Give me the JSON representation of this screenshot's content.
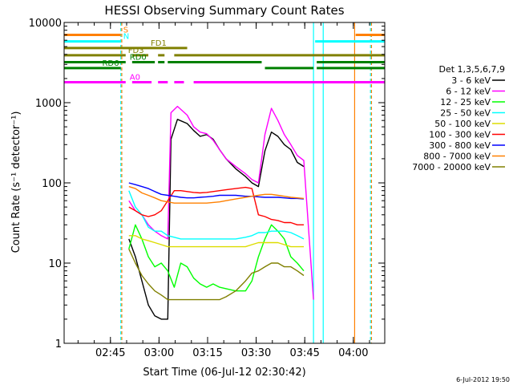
{
  "chart_data": {
    "type": "line",
    "title": "HESSI Observing Summary Count Rates",
    "xlabel": "Start Time (06-Jul-12 02:30:42)",
    "ylabel": "Count Rate (s⁻¹ detector⁻¹)",
    "ylim": [
      1,
      10000
    ],
    "yscale": "log",
    "x_unit": "minutes after 02:30:42",
    "xlim": [
      0,
      99
    ],
    "x_ticks": [
      {
        "label": "02:45",
        "value": 14.3
      },
      {
        "label": "03:00",
        "value": 29.3
      },
      {
        "label": "03:15",
        "value": 44.3
      },
      {
        "label": "03:30",
        "value": 59.3
      },
      {
        "label": "03:45",
        "value": 74.3
      },
      {
        "label": "04:00",
        "value": 89.3
      }
    ],
    "y_ticks": [
      {
        "label": "1",
        "value": 1
      },
      {
        "label": "10",
        "value": 10
      },
      {
        "label": "100",
        "value": 100
      },
      {
        "label": "1000",
        "value": 1000
      },
      {
        "label": "10000",
        "value": 10000
      }
    ],
    "legend_title": "Det 1,3,5,6,7,9",
    "legend_position": "right",
    "timestamp": "6-Jul-2012 19:50",
    "series": [
      {
        "name": "3 - 6 keV",
        "color": "#000000",
        "points": [
          [
            20,
            20
          ],
          [
            22,
            12
          ],
          [
            24,
            6
          ],
          [
            26,
            3
          ],
          [
            28,
            2.2
          ],
          [
            30,
            2
          ],
          [
            32,
            2
          ],
          [
            33,
            350
          ],
          [
            35,
            620
          ],
          [
            38,
            550
          ],
          [
            40,
            450
          ],
          [
            42,
            380
          ],
          [
            44,
            400
          ],
          [
            46,
            350
          ],
          [
            48,
            260
          ],
          [
            50,
            200
          ],
          [
            53,
            150
          ],
          [
            56,
            120
          ],
          [
            58,
            100
          ],
          [
            60,
            90
          ],
          [
            62,
            250
          ],
          [
            64,
            430
          ],
          [
            66,
            380
          ],
          [
            68,
            300
          ],
          [
            70,
            260
          ],
          [
            72,
            180
          ],
          [
            74,
            160
          ]
        ]
      },
      {
        "name": "6 - 12 keV",
        "color": "#ff00ff",
        "points": [
          [
            20,
            60
          ],
          [
            22,
            45
          ],
          [
            24,
            40
          ],
          [
            26,
            30
          ],
          [
            28,
            25
          ],
          [
            30,
            22
          ],
          [
            32,
            20
          ],
          [
            33,
            750
          ],
          [
            35,
            900
          ],
          [
            38,
            700
          ],
          [
            40,
            500
          ],
          [
            42,
            430
          ],
          [
            44,
            410
          ],
          [
            46,
            340
          ],
          [
            48,
            260
          ],
          [
            50,
            200
          ],
          [
            53,
            160
          ],
          [
            56,
            130
          ],
          [
            58,
            110
          ],
          [
            60,
            100
          ],
          [
            62,
            400
          ],
          [
            64,
            850
          ],
          [
            66,
            600
          ],
          [
            68,
            400
          ],
          [
            70,
            300
          ],
          [
            72,
            220
          ],
          [
            74,
            190
          ],
          [
            77,
            3.5
          ]
        ]
      },
      {
        "name": "12 - 25 keV",
        "color": "#00ff00",
        "points": [
          [
            20,
            15
          ],
          [
            22,
            30
          ],
          [
            24,
            20
          ],
          [
            26,
            12
          ],
          [
            28,
            9
          ],
          [
            30,
            10
          ],
          [
            32,
            8
          ],
          [
            34,
            5
          ],
          [
            36,
            10
          ],
          [
            38,
            9
          ],
          [
            40,
            6.5
          ],
          [
            42,
            5.5
          ],
          [
            44,
            5
          ],
          [
            46,
            5.5
          ],
          [
            48,
            5
          ],
          [
            50,
            4.8
          ],
          [
            53,
            4.5
          ],
          [
            56,
            4.5
          ],
          [
            58,
            6
          ],
          [
            60,
            12
          ],
          [
            62,
            20
          ],
          [
            64,
            30
          ],
          [
            66,
            25
          ],
          [
            68,
            20
          ],
          [
            70,
            12
          ],
          [
            72,
            10
          ],
          [
            74,
            8
          ]
        ]
      },
      {
        "name": "25 - 50 keV",
        "color": "#00ffff",
        "points": [
          [
            20,
            80
          ],
          [
            22,
            50
          ],
          [
            24,
            40
          ],
          [
            26,
            28
          ],
          [
            28,
            25
          ],
          [
            30,
            25
          ],
          [
            32,
            22
          ],
          [
            34,
            21
          ],
          [
            36,
            20
          ],
          [
            38,
            20
          ],
          [
            40,
            20
          ],
          [
            42,
            20
          ],
          [
            44,
            20
          ],
          [
            46,
            20
          ],
          [
            48,
            20
          ],
          [
            50,
            20
          ],
          [
            53,
            20
          ],
          [
            56,
            21
          ],
          [
            58,
            22
          ],
          [
            60,
            24
          ],
          [
            62,
            24
          ],
          [
            64,
            25
          ],
          [
            66,
            25
          ],
          [
            68,
            25
          ],
          [
            70,
            24
          ],
          [
            72,
            22
          ],
          [
            74,
            20
          ]
        ]
      },
      {
        "name": "50 - 100 keV",
        "color": "#dddd00",
        "points": [
          [
            20,
            22
          ],
          [
            22,
            22
          ],
          [
            24,
            20
          ],
          [
            26,
            19
          ],
          [
            28,
            18
          ],
          [
            30,
            17
          ],
          [
            32,
            16
          ],
          [
            34,
            16
          ],
          [
            36,
            16
          ],
          [
            38,
            16
          ],
          [
            40,
            16
          ],
          [
            42,
            16
          ],
          [
            44,
            16
          ],
          [
            46,
            16
          ],
          [
            48,
            16
          ],
          [
            50,
            16
          ],
          [
            53,
            16
          ],
          [
            56,
            16
          ],
          [
            58,
            17
          ],
          [
            60,
            18
          ],
          [
            62,
            18
          ],
          [
            64,
            18
          ],
          [
            66,
            18
          ],
          [
            68,
            17
          ],
          [
            70,
            16
          ],
          [
            72,
            16
          ],
          [
            74,
            16
          ]
        ]
      },
      {
        "name": "100 - 300 keV",
        "color": "#ff0000",
        "points": [
          [
            20,
            50
          ],
          [
            22,
            45
          ],
          [
            24,
            40
          ],
          [
            26,
            38
          ],
          [
            28,
            40
          ],
          [
            30,
            45
          ],
          [
            32,
            60
          ],
          [
            34,
            80
          ],
          [
            36,
            80
          ],
          [
            38,
            78
          ],
          [
            40,
            76
          ],
          [
            42,
            75
          ],
          [
            44,
            76
          ],
          [
            46,
            78
          ],
          [
            48,
            80
          ],
          [
            50,
            82
          ],
          [
            53,
            85
          ],
          [
            56,
            88
          ],
          [
            58,
            85
          ],
          [
            60,
            40
          ],
          [
            62,
            38
          ],
          [
            64,
            35
          ],
          [
            66,
            34
          ],
          [
            68,
            32
          ],
          [
            70,
            32
          ],
          [
            72,
            30
          ],
          [
            74,
            30
          ]
        ]
      },
      {
        "name": "300 - 800 keV",
        "color": "#0000ff",
        "points": [
          [
            20,
            100
          ],
          [
            22,
            95
          ],
          [
            24,
            90
          ],
          [
            26,
            85
          ],
          [
            28,
            78
          ],
          [
            30,
            72
          ],
          [
            32,
            70
          ],
          [
            34,
            68
          ],
          [
            36,
            66
          ],
          [
            38,
            65
          ],
          [
            40,
            65
          ],
          [
            42,
            66
          ],
          [
            44,
            67
          ],
          [
            46,
            68
          ],
          [
            48,
            70
          ],
          [
            50,
            70
          ],
          [
            53,
            70
          ],
          [
            56,
            68
          ],
          [
            58,
            68
          ],
          [
            60,
            67
          ],
          [
            62,
            66
          ],
          [
            64,
            66
          ],
          [
            66,
            66
          ],
          [
            68,
            65
          ],
          [
            70,
            64
          ],
          [
            72,
            64
          ],
          [
            74,
            63
          ]
        ]
      },
      {
        "name": "800 - 7000 keV",
        "color": "#ff8000",
        "points": [
          [
            20,
            90
          ],
          [
            22,
            85
          ],
          [
            24,
            75
          ],
          [
            26,
            70
          ],
          [
            28,
            65
          ],
          [
            30,
            60
          ],
          [
            32,
            58
          ],
          [
            34,
            56
          ],
          [
            36,
            56
          ],
          [
            38,
            56
          ],
          [
            40,
            56
          ],
          [
            42,
            56
          ],
          [
            44,
            56
          ],
          [
            46,
            57
          ],
          [
            48,
            58
          ],
          [
            50,
            60
          ],
          [
            53,
            63
          ],
          [
            56,
            66
          ],
          [
            58,
            68
          ],
          [
            60,
            70
          ],
          [
            62,
            72
          ],
          [
            64,
            72
          ],
          [
            66,
            70
          ],
          [
            68,
            68
          ],
          [
            70,
            66
          ],
          [
            72,
            65
          ],
          [
            74,
            64
          ]
        ]
      },
      {
        "name": "7000 - 20000 keV",
        "color": "#808000",
        "points": [
          [
            20,
            15
          ],
          [
            22,
            10
          ],
          [
            24,
            7
          ],
          [
            26,
            5.5
          ],
          [
            28,
            4.5
          ],
          [
            30,
            4
          ],
          [
            32,
            3.5
          ],
          [
            34,
            3.5
          ],
          [
            36,
            3.5
          ],
          [
            38,
            3.5
          ],
          [
            40,
            3.5
          ],
          [
            42,
            3.5
          ],
          [
            44,
            3.5
          ],
          [
            46,
            3.5
          ],
          [
            48,
            3.5
          ],
          [
            50,
            3.8
          ],
          [
            53,
            4.5
          ],
          [
            56,
            6
          ],
          [
            58,
            7.5
          ],
          [
            60,
            8
          ],
          [
            62,
            9
          ],
          [
            64,
            10
          ],
          [
            66,
            10
          ],
          [
            68,
            9
          ],
          [
            70,
            9
          ],
          [
            72,
            8
          ],
          [
            74,
            7
          ]
        ]
      }
    ],
    "flags": [
      {
        "label": "S",
        "color": "#ff8000",
        "y": 7000,
        "segments": [
          [
            0,
            17.5
          ],
          [
            90,
            99
          ]
        ],
        "label_x": 17.5
      },
      {
        "label": "N",
        "color": "#00ffff",
        "y": 5800,
        "segments": [
          [
            0,
            17.5
          ],
          [
            77.5,
            99
          ]
        ],
        "label_x": 17.5
      },
      {
        "label": "FD1",
        "color": "#808000",
        "y": 4800,
        "segments": [
          [
            0,
            38
          ]
        ],
        "label_x": 26
      },
      {
        "label": "FD3",
        "color": "#808000",
        "y": 3900,
        "segments": [
          [
            0,
            19
          ],
          [
            21,
            26
          ],
          [
            29,
            31
          ],
          [
            34,
            99
          ]
        ],
        "label_x": 19
      },
      {
        "label": "RD0",
        "color": "#008000",
        "y": 3200,
        "segments": [
          [
            0,
            19
          ],
          [
            21,
            28
          ],
          [
            29,
            31
          ],
          [
            32,
            61
          ],
          [
            78,
            99
          ]
        ],
        "label_x": 19.5
      },
      {
        "label": "RD6",
        "color": "#008000",
        "y": 2700,
        "segments": [
          [
            0,
            17.5
          ],
          [
            62,
            77
          ],
          [
            78,
            99
          ]
        ],
        "label_x": 11
      },
      {
        "label": "A0",
        "color": "#ff00ff",
        "y": 1800,
        "segments": [
          [
            0,
            19
          ],
          [
            21,
            27
          ],
          [
            29,
            32
          ],
          [
            34,
            37
          ],
          [
            40,
            99
          ]
        ],
        "label_x": 19.5
      }
    ],
    "vlines": [
      {
        "x": 17.5,
        "color": "#00ffff",
        "dashed": true
      },
      {
        "x": 17.8,
        "color": "#ff8000",
        "dashed": true
      },
      {
        "x": 77.0,
        "color": "#00ffff",
        "dashed": false
      },
      {
        "x": 80.0,
        "color": "#00ffff",
        "dashed": false
      },
      {
        "x": 89.7,
        "color": "#ff8000",
        "dashed": false
      },
      {
        "x": 94.6,
        "color": "#00ffff",
        "dashed": true
      },
      {
        "x": 94.9,
        "color": "#ff8000",
        "dashed": true
      }
    ]
  }
}
